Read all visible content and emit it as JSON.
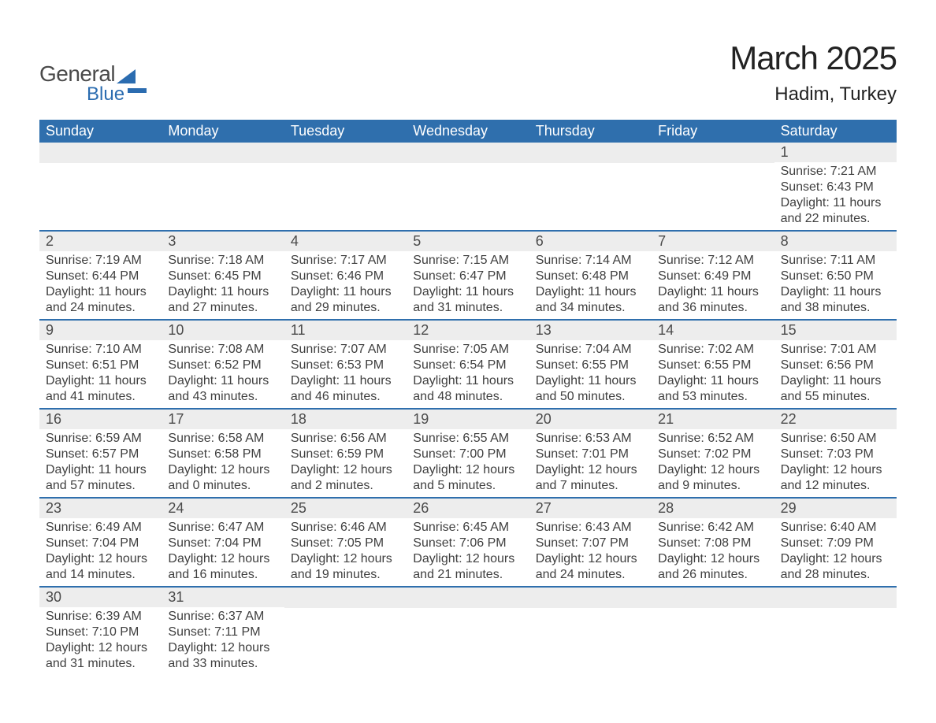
{
  "logo": {
    "word1": "General",
    "word2": "Blue"
  },
  "title": "March 2025",
  "location": "Hadim, Turkey",
  "colors": {
    "header_bg": "#2f6fad",
    "header_text": "#ffffff",
    "row_border": "#2f6fad",
    "daynum_bg": "#ededed",
    "text": "#3f3f3f",
    "logo_blue": "#2b6cb0",
    "logo_gray": "#4a4a4a",
    "page_bg": "#ffffff"
  },
  "dow": [
    "Sunday",
    "Monday",
    "Tuesday",
    "Wednesday",
    "Thursday",
    "Friday",
    "Saturday"
  ],
  "weeks": [
    [
      {
        "n": "",
        "sunrise": "",
        "sunset": "",
        "daylight": ""
      },
      {
        "n": "",
        "sunrise": "",
        "sunset": "",
        "daylight": ""
      },
      {
        "n": "",
        "sunrise": "",
        "sunset": "",
        "daylight": ""
      },
      {
        "n": "",
        "sunrise": "",
        "sunset": "",
        "daylight": ""
      },
      {
        "n": "",
        "sunrise": "",
        "sunset": "",
        "daylight": ""
      },
      {
        "n": "",
        "sunrise": "",
        "sunset": "",
        "daylight": ""
      },
      {
        "n": "1",
        "sunrise": "Sunrise: 7:21 AM",
        "sunset": "Sunset: 6:43 PM",
        "daylight": "Daylight: 11 hours and 22 minutes."
      }
    ],
    [
      {
        "n": "2",
        "sunrise": "Sunrise: 7:19 AM",
        "sunset": "Sunset: 6:44 PM",
        "daylight": "Daylight: 11 hours and 24 minutes."
      },
      {
        "n": "3",
        "sunrise": "Sunrise: 7:18 AM",
        "sunset": "Sunset: 6:45 PM",
        "daylight": "Daylight: 11 hours and 27 minutes."
      },
      {
        "n": "4",
        "sunrise": "Sunrise: 7:17 AM",
        "sunset": "Sunset: 6:46 PM",
        "daylight": "Daylight: 11 hours and 29 minutes."
      },
      {
        "n": "5",
        "sunrise": "Sunrise: 7:15 AM",
        "sunset": "Sunset: 6:47 PM",
        "daylight": "Daylight: 11 hours and 31 minutes."
      },
      {
        "n": "6",
        "sunrise": "Sunrise: 7:14 AM",
        "sunset": "Sunset: 6:48 PM",
        "daylight": "Daylight: 11 hours and 34 minutes."
      },
      {
        "n": "7",
        "sunrise": "Sunrise: 7:12 AM",
        "sunset": "Sunset: 6:49 PM",
        "daylight": "Daylight: 11 hours and 36 minutes."
      },
      {
        "n": "8",
        "sunrise": "Sunrise: 7:11 AM",
        "sunset": "Sunset: 6:50 PM",
        "daylight": "Daylight: 11 hours and 38 minutes."
      }
    ],
    [
      {
        "n": "9",
        "sunrise": "Sunrise: 7:10 AM",
        "sunset": "Sunset: 6:51 PM",
        "daylight": "Daylight: 11 hours and 41 minutes."
      },
      {
        "n": "10",
        "sunrise": "Sunrise: 7:08 AM",
        "sunset": "Sunset: 6:52 PM",
        "daylight": "Daylight: 11 hours and 43 minutes."
      },
      {
        "n": "11",
        "sunrise": "Sunrise: 7:07 AM",
        "sunset": "Sunset: 6:53 PM",
        "daylight": "Daylight: 11 hours and 46 minutes."
      },
      {
        "n": "12",
        "sunrise": "Sunrise: 7:05 AM",
        "sunset": "Sunset: 6:54 PM",
        "daylight": "Daylight: 11 hours and 48 minutes."
      },
      {
        "n": "13",
        "sunrise": "Sunrise: 7:04 AM",
        "sunset": "Sunset: 6:55 PM",
        "daylight": "Daylight: 11 hours and 50 minutes."
      },
      {
        "n": "14",
        "sunrise": "Sunrise: 7:02 AM",
        "sunset": "Sunset: 6:55 PM",
        "daylight": "Daylight: 11 hours and 53 minutes."
      },
      {
        "n": "15",
        "sunrise": "Sunrise: 7:01 AM",
        "sunset": "Sunset: 6:56 PM",
        "daylight": "Daylight: 11 hours and 55 minutes."
      }
    ],
    [
      {
        "n": "16",
        "sunrise": "Sunrise: 6:59 AM",
        "sunset": "Sunset: 6:57 PM",
        "daylight": "Daylight: 11 hours and 57 minutes."
      },
      {
        "n": "17",
        "sunrise": "Sunrise: 6:58 AM",
        "sunset": "Sunset: 6:58 PM",
        "daylight": "Daylight: 12 hours and 0 minutes."
      },
      {
        "n": "18",
        "sunrise": "Sunrise: 6:56 AM",
        "sunset": "Sunset: 6:59 PM",
        "daylight": "Daylight: 12 hours and 2 minutes."
      },
      {
        "n": "19",
        "sunrise": "Sunrise: 6:55 AM",
        "sunset": "Sunset: 7:00 PM",
        "daylight": "Daylight: 12 hours and 5 minutes."
      },
      {
        "n": "20",
        "sunrise": "Sunrise: 6:53 AM",
        "sunset": "Sunset: 7:01 PM",
        "daylight": "Daylight: 12 hours and 7 minutes."
      },
      {
        "n": "21",
        "sunrise": "Sunrise: 6:52 AM",
        "sunset": "Sunset: 7:02 PM",
        "daylight": "Daylight: 12 hours and 9 minutes."
      },
      {
        "n": "22",
        "sunrise": "Sunrise: 6:50 AM",
        "sunset": "Sunset: 7:03 PM",
        "daylight": "Daylight: 12 hours and 12 minutes."
      }
    ],
    [
      {
        "n": "23",
        "sunrise": "Sunrise: 6:49 AM",
        "sunset": "Sunset: 7:04 PM",
        "daylight": "Daylight: 12 hours and 14 minutes."
      },
      {
        "n": "24",
        "sunrise": "Sunrise: 6:47 AM",
        "sunset": "Sunset: 7:04 PM",
        "daylight": "Daylight: 12 hours and 16 minutes."
      },
      {
        "n": "25",
        "sunrise": "Sunrise: 6:46 AM",
        "sunset": "Sunset: 7:05 PM",
        "daylight": "Daylight: 12 hours and 19 minutes."
      },
      {
        "n": "26",
        "sunrise": "Sunrise: 6:45 AM",
        "sunset": "Sunset: 7:06 PM",
        "daylight": "Daylight: 12 hours and 21 minutes."
      },
      {
        "n": "27",
        "sunrise": "Sunrise: 6:43 AM",
        "sunset": "Sunset: 7:07 PM",
        "daylight": "Daylight: 12 hours and 24 minutes."
      },
      {
        "n": "28",
        "sunrise": "Sunrise: 6:42 AM",
        "sunset": "Sunset: 7:08 PM",
        "daylight": "Daylight: 12 hours and 26 minutes."
      },
      {
        "n": "29",
        "sunrise": "Sunrise: 6:40 AM",
        "sunset": "Sunset: 7:09 PM",
        "daylight": "Daylight: 12 hours and 28 minutes."
      }
    ],
    [
      {
        "n": "30",
        "sunrise": "Sunrise: 6:39 AM",
        "sunset": "Sunset: 7:10 PM",
        "daylight": "Daylight: 12 hours and 31 minutes."
      },
      {
        "n": "31",
        "sunrise": "Sunrise: 6:37 AM",
        "sunset": "Sunset: 7:11 PM",
        "daylight": "Daylight: 12 hours and 33 minutes."
      },
      {
        "n": "",
        "sunrise": "",
        "sunset": "",
        "daylight": ""
      },
      {
        "n": "",
        "sunrise": "",
        "sunset": "",
        "daylight": ""
      },
      {
        "n": "",
        "sunrise": "",
        "sunset": "",
        "daylight": ""
      },
      {
        "n": "",
        "sunrise": "",
        "sunset": "",
        "daylight": ""
      },
      {
        "n": "",
        "sunrise": "",
        "sunset": "",
        "daylight": ""
      }
    ]
  ]
}
